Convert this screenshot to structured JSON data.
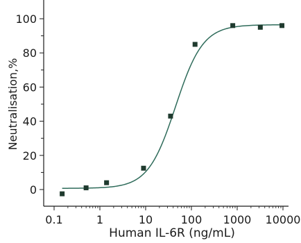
{
  "chart_data": {
    "type": "scatter",
    "xlabel": "Human IL-6R (ng/mL)",
    "ylabel": "Neutralisation,%",
    "x_scale": "log",
    "xlim": [
      0.1,
      10000
    ],
    "ylim": [
      -10,
      110
    ],
    "x_ticks": [
      {
        "value": 0.1,
        "label": "0.1"
      },
      {
        "value": 1,
        "label": "1"
      },
      {
        "value": 10,
        "label": "10"
      },
      {
        "value": 100,
        "label": "100"
      },
      {
        "value": 1000,
        "label": "1000"
      },
      {
        "value": 10000,
        "label": "10000"
      }
    ],
    "y_ticks": [
      {
        "value": 0,
        "label": "0"
      },
      {
        "value": 20,
        "label": "20"
      },
      {
        "value": 40,
        "label": "40"
      },
      {
        "value": 60,
        "label": "60"
      },
      {
        "value": 80,
        "label": "80"
      },
      {
        "value": 100,
        "label": "100"
      }
    ],
    "points": [
      {
        "x": 0.15,
        "y": -2.5
      },
      {
        "x": 0.5,
        "y": 1
      },
      {
        "x": 1.4,
        "y": 4
      },
      {
        "x": 9,
        "y": 12.5
      },
      {
        "x": 35,
        "y": 43
      },
      {
        "x": 120,
        "y": 85
      },
      {
        "x": 800,
        "y": 96
      },
      {
        "x": 3200,
        "y": 95
      },
      {
        "x": 9500,
        "y": 96
      }
    ],
    "fit_curve": {
      "model": "4PL",
      "bottom": 0.7,
      "top": 96.5,
      "ec50": 45,
      "hill": 1.45,
      "x_range": [
        0.15,
        9500
      ]
    },
    "grid": false,
    "colors": {
      "marker": "#1f3a2e",
      "curve": "#2e6b5a",
      "axis": "#1a1a1a"
    }
  }
}
